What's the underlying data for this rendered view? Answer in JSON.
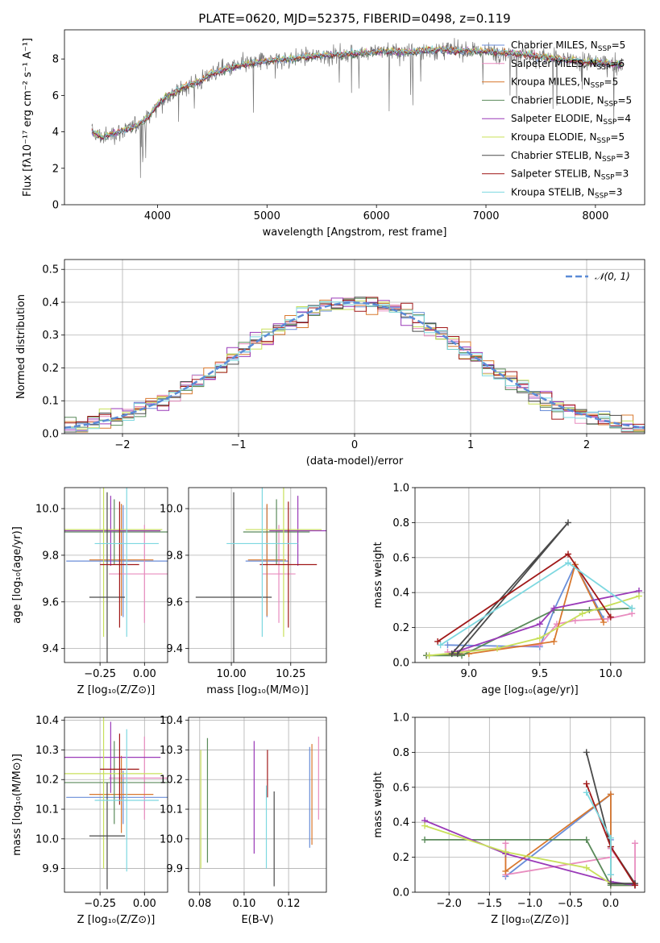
{
  "figure": {
    "title": "PLATE=0620, MJD=52375, FIBERID=0498, z=0.119"
  },
  "colors": {
    "chabrier_miles": "#6a8ed8",
    "salpeter_miles": "#e88cbf",
    "kroupa_miles": "#d8782e",
    "chabrier_elodie": "#5a8a5a",
    "salpeter_elodie": "#9a3ab8",
    "kroupa_elodie": "#c8e05a",
    "chabrier_stelib": "#4a4a4a",
    "salpeter_stelib": "#a01818",
    "kroupa_stelib": "#7dd8e0",
    "data_spectrum": "#777777",
    "normal_curve": "#5b8bd6"
  },
  "chart_data": [
    {
      "id": "spectrum",
      "type": "line",
      "xlabel": "wavelength [Angstrom, rest frame]",
      "ylabel": "Flux [fλ10⁻¹⁷ erg cm⁻² s⁻¹ A⁻¹]",
      "xlim": [
        3150,
        8450
      ],
      "ylim": [
        0,
        9.6
      ],
      "xticks": [
        4000,
        5000,
        6000,
        7000,
        8000
      ],
      "yticks": [
        0,
        2,
        4,
        6,
        8
      ],
      "legend_position": "right",
      "legend": [
        {
          "text": "Chabrier MILES, N",
          "sub": "SSP",
          "tail": "=5",
          "color": "chabrier_miles"
        },
        {
          "text": "Salpeter MILES, N",
          "sub": "SSP",
          "tail": "=6",
          "color": "salpeter_miles"
        },
        {
          "text": "Kroupa MILES, N",
          "sub": "SSP",
          "tail": "=5",
          "color": "kroupa_miles"
        },
        {
          "text": "Chabrier ELODIE, N",
          "sub": "SSP",
          "tail": "=5",
          "color": "chabrier_elodie"
        },
        {
          "text": "Salpeter ELODIE, N",
          "sub": "SSP",
          "tail": "=4",
          "color": "salpeter_elodie"
        },
        {
          "text": "Kroupa ELODIE, N",
          "sub": "SSP",
          "tail": "=5",
          "color": "kroupa_elodie"
        },
        {
          "text": "Chabrier STELIB, N",
          "sub": "SSP",
          "tail": "=3",
          "color": "chabrier_stelib"
        },
        {
          "text": "Salpeter STELIB, N",
          "sub": "SSP",
          "tail": "=3",
          "color": "salpeter_stelib"
        },
        {
          "text": "Kroupa STELIB, N",
          "sub": "SSP",
          "tail": "=3",
          "color": "kroupa_stelib"
        }
      ],
      "continuum": {
        "x": [
          3400,
          3500,
          3600,
          3700,
          3800,
          3900,
          4000,
          4100,
          4200,
          4300,
          4400,
          4500,
          4600,
          4800,
          5000,
          5200,
          5500,
          5800,
          6000,
          6300,
          6600,
          7000,
          7300,
          7500,
          7800,
          8000,
          8200
        ],
        "y": [
          4.0,
          3.7,
          3.9,
          4.1,
          4.3,
          4.7,
          5.5,
          6.0,
          6.3,
          6.6,
          6.8,
          7.2,
          7.4,
          7.7,
          7.9,
          8.0,
          8.2,
          8.3,
          8.4,
          8.4,
          8.5,
          8.4,
          8.3,
          8.1,
          7.9,
          7.8,
          7.7
        ]
      }
    },
    {
      "id": "residuals",
      "type": "bar",
      "xlabel": "(data-model)/error",
      "ylabel": "Normed distribution",
      "xlim": [
        -2.5,
        2.5
      ],
      "ylim": [
        0,
        0.53
      ],
      "xticks": [
        -2,
        -1,
        0,
        1,
        2
      ],
      "yticks": [
        0.0,
        0.1,
        0.2,
        0.3,
        0.4,
        0.5
      ],
      "grid": true,
      "legend_position": "top-right",
      "reference_curve": {
        "label": "𝒩(0, 1)",
        "mean": 0,
        "sigma": 1
      }
    },
    {
      "id": "age_vs_z",
      "type": "scatter",
      "xlabel": "Z [log₁₀(Z/Z⊙)]",
      "ylabel": "age  [log₁₀(age/yr)]",
      "xlim": [
        -0.45,
        0.13
      ],
      "ylim": [
        9.34,
        10.09
      ],
      "xticks": [
        -0.25,
        0.0
      ],
      "yticks": [
        9.4,
        9.6,
        9.8,
        10.0
      ],
      "grid": true,
      "points": [
        {
          "x": -0.12,
          "xerr": 0.32,
          "y": 9.775,
          "yerr": 0.24,
          "color": "chabrier_miles"
        },
        {
          "x": 0.0,
          "xerr": 0.2,
          "y": 9.72,
          "yerr": 0.21,
          "color": "salpeter_miles"
        },
        {
          "x": -0.13,
          "xerr": 0.18,
          "y": 9.78,
          "yerr": 0.24,
          "color": "kroupa_miles"
        },
        {
          "x": -0.17,
          "xerr": 0.3,
          "y": 9.9,
          "yerr": 0.14,
          "color": "chabrier_elodie"
        },
        {
          "x": -0.19,
          "xerr": 0.28,
          "y": 9.905,
          "yerr": 0.15,
          "color": "salpeter_elodie"
        },
        {
          "x": -0.23,
          "xerr": 0.33,
          "y": 9.91,
          "yerr": 0.46,
          "color": "kroupa_elodie"
        },
        {
          "x": -0.21,
          "xerr": 0.1,
          "y": 9.62,
          "yerr": 0.45,
          "color": "chabrier_stelib"
        },
        {
          "x": -0.14,
          "xerr": 0.11,
          "y": 9.76,
          "yerr": 0.27,
          "color": "salpeter_stelib"
        },
        {
          "x": -0.1,
          "xerr": 0.18,
          "y": 9.85,
          "yerr": 0.4,
          "color": "kroupa_stelib"
        }
      ]
    },
    {
      "id": "age_vs_mass",
      "type": "scatter",
      "xlabel": "mass [log₁₀(M/M⊙)]",
      "ylabel": "",
      "xlim": [
        9.82,
        10.4
      ],
      "ylim": [
        9.34,
        10.09
      ],
      "xticks": [
        10.0,
        10.25
      ],
      "yticks": [
        9.4,
        9.6,
        9.8,
        10.0
      ],
      "grid": true,
      "points": [
        {
          "x": 10.15,
          "xerr": 0.09,
          "y": 9.775,
          "yerr": 0.24,
          "color": "chabrier_miles"
        },
        {
          "x": 10.2,
          "xerr": 0.07,
          "y": 9.72,
          "yerr": 0.21,
          "color": "salpeter_miles"
        },
        {
          "x": 10.15,
          "xerr": 0.08,
          "y": 9.78,
          "yerr": 0.24,
          "color": "kroupa_miles"
        },
        {
          "x": 10.19,
          "xerr": 0.14,
          "y": 9.9,
          "yerr": 0.14,
          "color": "chabrier_elodie"
        },
        {
          "x": 10.28,
          "xerr": 0.12,
          "y": 9.905,
          "yerr": 0.15,
          "color": "salpeter_elodie"
        },
        {
          "x": 10.22,
          "xerr": 0.16,
          "y": 9.91,
          "yerr": 0.46,
          "color": "kroupa_elodie"
        },
        {
          "x": 10.01,
          "xerr": 0.16,
          "y": 9.62,
          "yerr": 0.45,
          "color": "chabrier_stelib"
        },
        {
          "x": 10.24,
          "xerr": 0.12,
          "y": 9.76,
          "yerr": 0.27,
          "color": "salpeter_stelib"
        },
        {
          "x": 10.13,
          "xerr": 0.15,
          "y": 9.85,
          "yerr": 0.4,
          "color": "kroupa_stelib"
        }
      ]
    },
    {
      "id": "mass_weight_vs_age",
      "type": "line",
      "xlabel": "age  [log₁₀(age/yr)]",
      "ylabel": "mass weight",
      "xlim": [
        8.62,
        10.24
      ],
      "ylim": [
        0,
        1.0
      ],
      "xticks": [
        9.0,
        9.5,
        10.0
      ],
      "yticks": [
        0.0,
        0.2,
        0.4,
        0.6,
        0.8,
        1.0
      ],
      "grid": true,
      "series": [
        {
          "color": "chabrier_miles",
          "x": [
            8.85,
            9.5,
            9.6,
            9.75,
            9.95
          ],
          "y": [
            0.1,
            0.09,
            0.3,
            0.56,
            0.25
          ]
        },
        {
          "color": "salpeter_miles",
          "x": [
            8.85,
            9.5,
            9.62,
            9.75,
            9.98,
            10.15
          ],
          "y": [
            0.06,
            0.1,
            0.22,
            0.24,
            0.25,
            0.28
          ]
        },
        {
          "color": "kroupa_miles",
          "x": [
            8.7,
            9.0,
            9.6,
            9.75,
            9.95
          ],
          "y": [
            0.04,
            0.05,
            0.12,
            0.56,
            0.23
          ]
        },
        {
          "color": "chabrier_elodie",
          "x": [
            8.7,
            8.95,
            9.6,
            9.85,
            10.15
          ],
          "y": [
            0.04,
            0.04,
            0.3,
            0.3,
            0.31
          ]
        },
        {
          "color": "salpeter_elodie",
          "x": [
            8.9,
            9.5,
            9.6,
            10.2
          ],
          "y": [
            0.06,
            0.22,
            0.31,
            0.41
          ]
        },
        {
          "color": "kroupa_elodie",
          "x": [
            8.72,
            9.2,
            9.5,
            9.8,
            10.2
          ],
          "y": [
            0.04,
            0.08,
            0.14,
            0.28,
            0.38
          ]
        },
        {
          "color": "chabrier_stelib",
          "x": [
            8.88,
            9.7,
            8.92
          ],
          "y": [
            0.05,
            0.8,
            0.05
          ]
        },
        {
          "color": "salpeter_stelib",
          "x": [
            8.78,
            9.7,
            10.0
          ],
          "y": [
            0.12,
            0.62,
            0.26
          ]
        },
        {
          "color": "kroupa_stelib",
          "x": [
            8.8,
            9.7,
            10.15
          ],
          "y": [
            0.1,
            0.57,
            0.31
          ]
        }
      ]
    },
    {
      "id": "mass_vs_z",
      "type": "scatter",
      "xlabel": "Z [log₁₀(Z/Z⊙)]",
      "ylabel": "mass [log₁₀(M/M⊙)]",
      "xlim": [
        -0.45,
        0.13
      ],
      "ylim": [
        9.82,
        10.41
      ],
      "xticks": [
        -0.25,
        0.0
      ],
      "yticks": [
        9.9,
        10.0,
        10.1,
        10.2,
        10.3,
        10.4
      ],
      "grid": true,
      "points": [
        {
          "x": -0.12,
          "xerr": 0.32,
          "y": 10.14,
          "yerr": 0.09,
          "color": "chabrier_miles"
        },
        {
          "x": 0.0,
          "xerr": 0.2,
          "y": 10.205,
          "yerr": 0.14,
          "color": "salpeter_miles"
        },
        {
          "x": -0.13,
          "xerr": 0.18,
          "y": 10.15,
          "yerr": 0.13,
          "color": "kroupa_miles"
        },
        {
          "x": -0.17,
          "xerr": 0.3,
          "y": 10.19,
          "yerr": 0.14,
          "color": "chabrier_elodie"
        },
        {
          "x": -0.19,
          "xerr": 0.28,
          "y": 10.275,
          "yerr": 0.12,
          "color": "salpeter_elodie"
        },
        {
          "x": -0.23,
          "xerr": 0.33,
          "y": 10.22,
          "yerr": 0.32,
          "color": "kroupa_elodie"
        },
        {
          "x": -0.21,
          "xerr": 0.1,
          "y": 10.01,
          "yerr": 0.18,
          "color": "chabrier_stelib"
        },
        {
          "x": -0.14,
          "xerr": 0.11,
          "y": 10.235,
          "yerr": 0.12,
          "color": "salpeter_stelib"
        },
        {
          "x": -0.1,
          "xerr": 0.18,
          "y": 10.13,
          "yerr": 0.24,
          "color": "kroupa_stelib"
        }
      ]
    },
    {
      "id": "mass_vs_ebv",
      "type": "scatter",
      "xlabel": "E(B-V)",
      "ylabel": "",
      "xlim": [
        0.075,
        0.137
      ],
      "ylim": [
        9.82,
        10.41
      ],
      "xticks": [
        0.08,
        0.1,
        0.12
      ],
      "yticks": [
        9.9,
        10.0,
        10.1,
        10.2,
        10.3,
        10.4
      ],
      "grid": true,
      "points": [
        {
          "x": 0.1295,
          "xerr": 0,
          "y": 10.14,
          "yerr": 0.17,
          "color": "chabrier_miles"
        },
        {
          "x": 0.1335,
          "xerr": 0,
          "y": 10.205,
          "yerr": 0.14,
          "color": "salpeter_miles"
        },
        {
          "x": 0.1305,
          "xerr": 0,
          "y": 10.15,
          "yerr": 0.17,
          "color": "kroupa_miles"
        },
        {
          "x": 0.0835,
          "xerr": 0,
          "y": 10.13,
          "yerr": 0.21,
          "color": "chabrier_elodie"
        },
        {
          "x": 0.1045,
          "xerr": 0,
          "y": 10.14,
          "yerr": 0.19,
          "color": "salpeter_elodie"
        },
        {
          "x": 0.0805,
          "xerr": 0,
          "y": 10.1,
          "yerr": 0.2,
          "color": "kroupa_elodie"
        },
        {
          "x": 0.1135,
          "xerr": 0,
          "y": 10.0,
          "yerr": 0.16,
          "color": "chabrier_stelib"
        },
        {
          "x": 0.1105,
          "xerr": 0,
          "y": 10.22,
          "yerr": 0.08,
          "color": "salpeter_stelib"
        },
        {
          "x": 0.11,
          "xerr": 0,
          "y": 10.04,
          "yerr": 0.14,
          "color": "kroupa_stelib"
        }
      ]
    },
    {
      "id": "mass_weight_vs_z",
      "type": "line",
      "xlabel": "Z [log₁₀(Z/Z⊙)]",
      "ylabel": "mass weight",
      "xlim": [
        -2.42,
        0.42
      ],
      "ylim": [
        0,
        1.0
      ],
      "xticks": [
        -2.0,
        -1.5,
        -1.0,
        -0.5,
        0.0
      ],
      "yticks": [
        0.0,
        0.2,
        0.4,
        0.6,
        0.8,
        1.0
      ],
      "grid": true,
      "series": [
        {
          "color": "chabrier_miles",
          "x": [
            -1.3,
            0.0,
            0.0,
            0.0
          ],
          "y": [
            0.09,
            0.56,
            0.3,
            0.1
          ]
        },
        {
          "color": "salpeter_miles",
          "x": [
            -1.3,
            -1.3,
            0.0,
            0.0,
            0.3,
            0.3
          ],
          "y": [
            0.28,
            0.1,
            0.2,
            0.25,
            0.05,
            0.28
          ]
        },
        {
          "color": "kroupa_miles",
          "x": [
            -1.3,
            -1.3,
            0.0,
            0.0,
            0.3
          ],
          "y": [
            0.23,
            0.12,
            0.56,
            0.04,
            0.04
          ]
        },
        {
          "color": "chabrier_elodie",
          "x": [
            -2.3,
            -0.3,
            0.0,
            0.3
          ],
          "y": [
            0.3,
            0.3,
            0.04,
            0.04
          ]
        },
        {
          "color": "salpeter_elodie",
          "x": [
            -2.3,
            -1.3,
            0.0,
            0.3
          ],
          "y": [
            0.41,
            0.22,
            0.06,
            0.04
          ]
        },
        {
          "color": "kroupa_elodie",
          "x": [
            -2.3,
            -1.3,
            -0.3,
            0.0
          ],
          "y": [
            0.38,
            0.23,
            0.14,
            0.05
          ]
        },
        {
          "color": "chabrier_stelib",
          "x": [
            -0.3,
            0.0,
            0.3,
            0.0
          ],
          "y": [
            0.8,
            0.26,
            0.05,
            0.05
          ]
        },
        {
          "color": "salpeter_stelib",
          "x": [
            -0.3,
            0.0,
            0.3
          ],
          "y": [
            0.62,
            0.26,
            0.04
          ]
        },
        {
          "color": "kroupa_stelib",
          "x": [
            -0.3,
            0.0,
            0.0
          ],
          "y": [
            0.57,
            0.31,
            0.1
          ]
        }
      ]
    }
  ]
}
